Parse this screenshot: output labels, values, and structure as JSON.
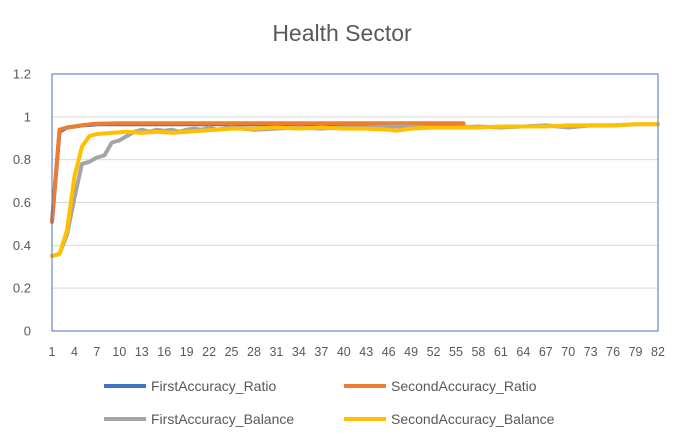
{
  "chart_data": {
    "type": "line",
    "title": "Health Sector",
    "xlabel": "",
    "ylabel": "",
    "ylim": [
      0,
      1.2
    ],
    "y_ticks": [
      "0",
      "0.2",
      "0.4",
      "0.6",
      "0.8",
      "1",
      "1.2"
    ],
    "x_range": [
      1,
      82
    ],
    "x_tick_labels": [
      "1",
      "4",
      "7",
      "10",
      "13",
      "16",
      "19",
      "22",
      "25",
      "28",
      "31",
      "34",
      "37",
      "40",
      "43",
      "46",
      "49",
      "52",
      "55",
      "58",
      "61",
      "64",
      "67",
      "70",
      "73",
      "76",
      "79",
      "82"
    ],
    "grid": true,
    "legend_position": "bottom",
    "series": [
      {
        "name": "FirstAccuracy_Ratio",
        "color": "#4472C4",
        "points": [
          [
            1,
            0.51
          ],
          [
            2,
            0.93
          ],
          [
            3,
            0.95
          ],
          [
            4,
            0.955
          ],
          [
            5,
            0.96
          ],
          [
            6,
            0.962
          ],
          [
            7,
            0.965
          ],
          [
            10,
            0.965
          ],
          [
            15,
            0.965
          ],
          [
            20,
            0.965
          ],
          [
            25,
            0.965
          ],
          [
            30,
            0.965
          ],
          [
            40,
            0.965
          ],
          [
            50,
            0.965
          ],
          [
            56,
            0.965
          ]
        ]
      },
      {
        "name": "SecondAccuracy_Ratio",
        "color": "#ED7D31",
        "points": [
          [
            1,
            0.51
          ],
          [
            2,
            0.94
          ],
          [
            3,
            0.95
          ],
          [
            4,
            0.955
          ],
          [
            5,
            0.96
          ],
          [
            6,
            0.965
          ],
          [
            7,
            0.968
          ],
          [
            10,
            0.97
          ],
          [
            15,
            0.97
          ],
          [
            20,
            0.97
          ],
          [
            25,
            0.97
          ],
          [
            30,
            0.97
          ],
          [
            40,
            0.97
          ],
          [
            50,
            0.97
          ],
          [
            56,
            0.97
          ]
        ]
      },
      {
        "name": "FirstAccuracy_Balance",
        "color": "#A5A5A5",
        "points": [
          [
            1,
            0.35
          ],
          [
            2,
            0.36
          ],
          [
            3,
            0.45
          ],
          [
            4,
            0.62
          ],
          [
            5,
            0.78
          ],
          [
            6,
            0.79
          ],
          [
            7,
            0.81
          ],
          [
            8,
            0.82
          ],
          [
            9,
            0.88
          ],
          [
            10,
            0.89
          ],
          [
            11,
            0.91
          ],
          [
            12,
            0.93
          ],
          [
            13,
            0.94
          ],
          [
            14,
            0.93
          ],
          [
            15,
            0.94
          ],
          [
            16,
            0.935
          ],
          [
            17,
            0.94
          ],
          [
            18,
            0.93
          ],
          [
            19,
            0.94
          ],
          [
            20,
            0.945
          ],
          [
            21,
            0.94
          ],
          [
            22,
            0.95
          ],
          [
            23,
            0.94
          ],
          [
            25,
            0.95
          ],
          [
            28,
            0.94
          ],
          [
            31,
            0.945
          ],
          [
            34,
            0.95
          ],
          [
            37,
            0.945
          ],
          [
            40,
            0.95
          ],
          [
            43,
            0.95
          ],
          [
            46,
            0.955
          ],
          [
            49,
            0.955
          ],
          [
            52,
            0.95
          ],
          [
            55,
            0.95
          ],
          [
            58,
            0.955
          ],
          [
            61,
            0.95
          ],
          [
            64,
            0.955
          ],
          [
            67,
            0.96
          ],
          [
            70,
            0.95
          ],
          [
            73,
            0.96
          ],
          [
            76,
            0.96
          ],
          [
            79,
            0.965
          ],
          [
            82,
            0.965
          ]
        ]
      },
      {
        "name": "SecondAccuracy_Balance",
        "color": "#FFC000",
        "points": [
          [
            1,
            0.35
          ],
          [
            2,
            0.36
          ],
          [
            3,
            0.47
          ],
          [
            4,
            0.72
          ],
          [
            5,
            0.86
          ],
          [
            6,
            0.91
          ],
          [
            7,
            0.92
          ],
          [
            9,
            0.925
          ],
          [
            11,
            0.93
          ],
          [
            13,
            0.925
          ],
          [
            15,
            0.93
          ],
          [
            17,
            0.925
          ],
          [
            19,
            0.93
          ],
          [
            21,
            0.935
          ],
          [
            23,
            0.94
          ],
          [
            25,
            0.945
          ],
          [
            28,
            0.945
          ],
          [
            31,
            0.95
          ],
          [
            34,
            0.945
          ],
          [
            37,
            0.95
          ],
          [
            40,
            0.945
          ],
          [
            43,
            0.945
          ],
          [
            46,
            0.94
          ],
          [
            47,
            0.935
          ],
          [
            49,
            0.945
          ],
          [
            52,
            0.95
          ],
          [
            55,
            0.95
          ],
          [
            58,
            0.95
          ],
          [
            61,
            0.955
          ],
          [
            64,
            0.955
          ],
          [
            67,
            0.955
          ],
          [
            70,
            0.96
          ],
          [
            73,
            0.96
          ],
          [
            76,
            0.96
          ],
          [
            79,
            0.965
          ],
          [
            82,
            0.965
          ]
        ]
      }
    ]
  }
}
